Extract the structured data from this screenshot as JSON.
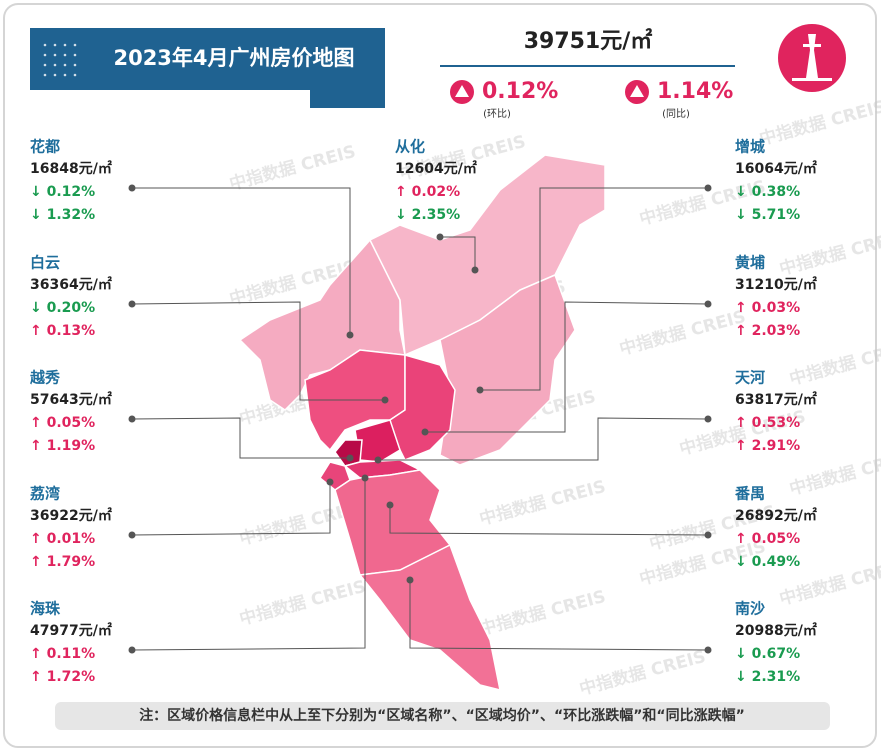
{
  "header": {
    "title": "2023年4月广州房价地图",
    "price": "39751元/㎡",
    "mom": "0.12%",
    "mom_label": "(环比)",
    "yoy": "1.14%",
    "yoy_label": "(同比)"
  },
  "districts": [
    {
      "name": "花都",
      "price": "16848元/㎡",
      "mom": "↓ 0.12%",
      "yoy": "↓ 1.32%"
    },
    {
      "name": "白云",
      "price": "36364元/㎡",
      "mom": "↓ 0.20%",
      "yoy": "↑ 0.13%"
    },
    {
      "name": "越秀",
      "price": "57643元/㎡",
      "mom": "↑ 0.05%",
      "yoy": "↑ 1.19%"
    },
    {
      "name": "荔湾",
      "price": "36922元/㎡",
      "mom": "↑ 0.01%",
      "yoy": "↑ 1.79%"
    },
    {
      "name": "海珠",
      "price": "47977元/㎡",
      "mom": "↑ 0.11%",
      "yoy": "↑ 1.72%"
    },
    {
      "name": "从化",
      "price": "12604元/㎡",
      "mom": "↑ 0.02%",
      "yoy": "↓ 2.35%"
    },
    {
      "name": "增城",
      "price": "16064元/㎡",
      "mom": "↓ 0.38%",
      "yoy": "↓ 5.71%"
    },
    {
      "name": "黄埔",
      "price": "31210元/㎡",
      "mom": "↑ 0.03%",
      "yoy": "↑ 2.03%"
    },
    {
      "name": "天河",
      "price": "63817元/㎡",
      "mom": "↑ 0.53%",
      "yoy": "↑ 2.91%"
    },
    {
      "name": "番禺",
      "price": "26892元/㎡",
      "mom": "↑ 0.05%",
      "yoy": "↓ 0.49%"
    },
    {
      "name": "南沙",
      "price": "20988元/㎡",
      "mom": "↓ 0.67%",
      "yoy": "↓ 2.31%"
    }
  ],
  "watermark": "中指数据 CREIS",
  "note": "注：区域价格信息栏中从上至下分别为“区域名称”、“区域均价”、“环比涨跌幅”和“同比涨跌幅”"
}
